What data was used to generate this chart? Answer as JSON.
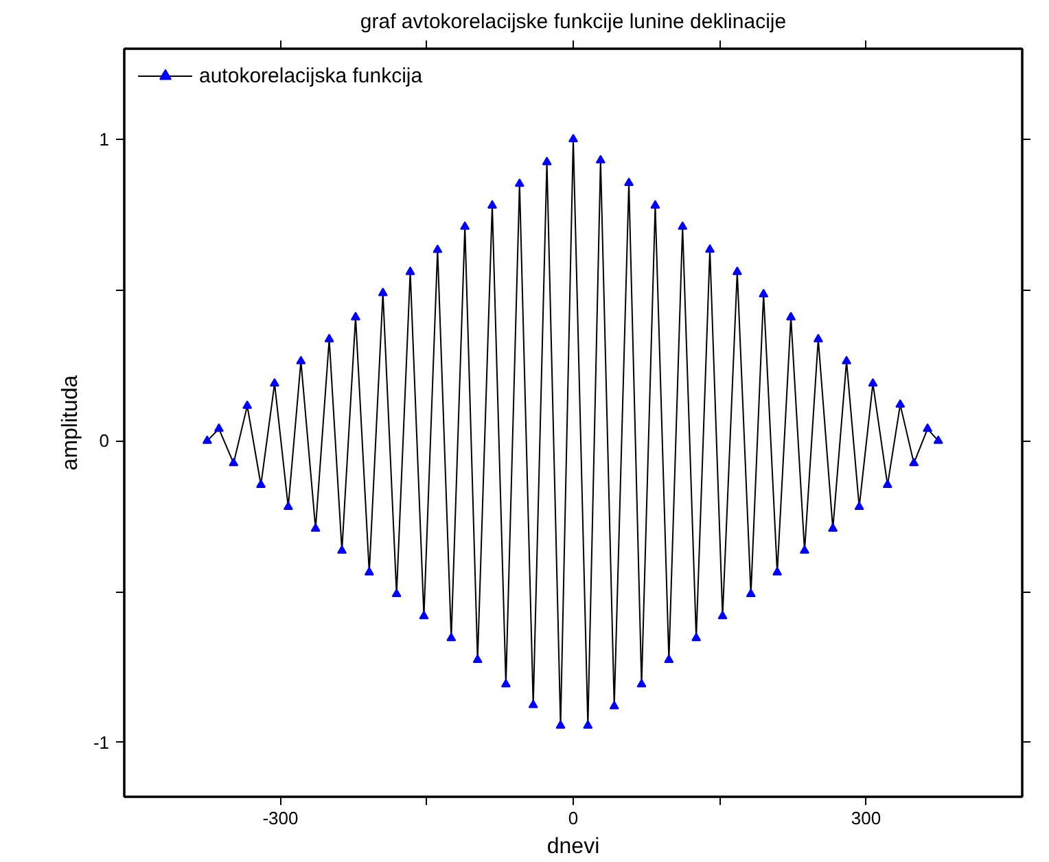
{
  "chart_data": {
    "type": "line",
    "title": "graf avtokorelacijske funkcije lunine deklinacije",
    "xlabel": "dnevi",
    "ylabel": "amplituda",
    "xlim": [
      -460,
      460
    ],
    "xticks": [
      -300,
      {
        "value": -150,
        "label": null
      },
      0,
      {
        "value": 150,
        "label": null
      },
      300
    ],
    "ylim": [
      -1.18,
      1.3
    ],
    "yticks": [
      -1,
      {
        "value": -0.5,
        "label": null
      },
      0,
      {
        "value": 0.5,
        "label": null
      },
      1
    ],
    "grid": false,
    "legend": "top left",
    "marker": "triangle",
    "line_style": "solid",
    "x": [
      -375,
      -363,
      -348,
      -334,
      -320,
      -306,
      -292,
      -279,
      -264,
      -250,
      -237,
      -223,
      -209,
      -195,
      -181,
      -167,
      -153,
      -139,
      -125,
      -111,
      -98,
      -83,
      -69,
      -55,
      -41,
      -27,
      -13,
      0,
      15,
      28,
      42,
      57,
      70,
      84,
      98,
      112,
      126,
      140,
      153,
      168,
      182,
      195,
      209,
      223,
      237,
      251,
      266,
      280,
      293,
      307,
      322,
      335,
      349,
      363,
      374
    ],
    "series": [
      {
        "name": "autokorelacijska funkcija",
        "color": "#0000ff",
        "values": [
          0.0,
          0.04,
          -0.074,
          0.116,
          -0.146,
          0.19,
          -0.219,
          0.264,
          -0.291,
          0.337,
          -0.364,
          0.41,
          -0.436,
          0.49,
          -0.508,
          0.56,
          -0.581,
          0.633,
          -0.654,
          0.71,
          -0.726,
          0.78,
          -0.807,
          0.852,
          -0.876,
          0.924,
          -0.944,
          1.0,
          -0.944,
          0.93,
          -0.88,
          0.855,
          -0.807,
          0.78,
          -0.726,
          0.71,
          -0.654,
          0.634,
          -0.581,
          0.56,
          -0.508,
          0.486,
          -0.436,
          0.41,
          -0.364,
          0.337,
          -0.291,
          0.264,
          -0.219,
          0.19,
          -0.146,
          0.12,
          -0.074,
          0.04,
          0.0
        ]
      }
    ]
  }
}
